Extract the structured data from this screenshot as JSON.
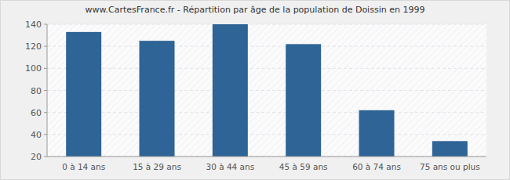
{
  "chart_data": {
    "type": "bar",
    "title": "www.CartesFrance.fr - Répartition par âge de la population de Doissin en 1999",
    "categories": [
      "0 à 14 ans",
      "15 à 29 ans",
      "30 à 44 ans",
      "45 à 59 ans",
      "60 à 74 ans",
      "75 ans ou plus"
    ],
    "values": [
      133,
      125,
      140,
      122,
      62,
      34
    ],
    "color": "#2f6496",
    "ylim": [
      20,
      140
    ],
    "yticks": [
      20,
      40,
      60,
      80,
      100,
      120,
      140
    ],
    "grid": true
  }
}
